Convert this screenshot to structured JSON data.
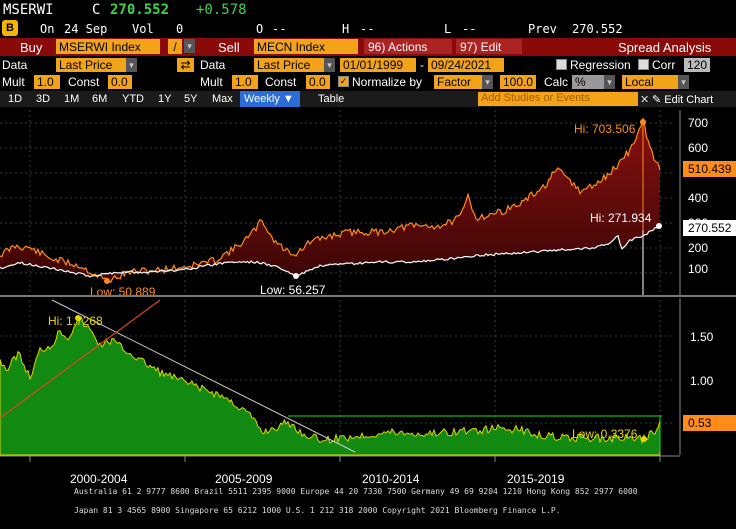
{
  "header": {
    "ticker": "MSERWI",
    "c_label": "C",
    "last": "270.552",
    "change": "+0.578",
    "on_label": "On",
    "date": "24 Sep",
    "vol_label": "Vol",
    "vol": "0",
    "o_label": "O",
    "o_val": "--",
    "h_label": "H",
    "h_val": "--",
    "l_label": "L",
    "l_val": "--",
    "prev_label": "Prev",
    "prev": "270.552"
  },
  "toolbar": {
    "buy": "Buy",
    "sec1": "MSERWI Index",
    "slash": "/",
    "sell": "Sell",
    "sec2": "MECN Index",
    "actions": "96) Actions",
    "edit": "97) Edit",
    "title": "Spread Analysis"
  },
  "row4": {
    "data": "Data",
    "last_price": "Last Price",
    "data2": "Data",
    "last_price2": "Last Price",
    "start": "01/01/1999",
    "dash": "-",
    "end": "09/24/2021",
    "regression": "Regression",
    "corr": "Corr",
    "corr_val": "120"
  },
  "row5": {
    "mult": "Mult",
    "mult_val": "1.0",
    "const": "Const",
    "const_val": "0.0",
    "mult2": "Mult",
    "mult_val2": "1.0",
    "const2": "Const",
    "const_val2": "0.0",
    "normalize": "Normalize by",
    "factor": "Factor",
    "factor_val": "100.0",
    "calc": "Calc",
    "calc_val": "%",
    "local": "Local"
  },
  "periods": {
    "items": [
      "1D",
      "3D",
      "1M",
      "6M",
      "YTD",
      "1Y",
      "5Y",
      "Max"
    ],
    "weekly": "Weekly",
    "table": "Table",
    "studies_placeholder": "Add Studies or Events",
    "edit_chart": "Edit Chart"
  },
  "chart_data": [
    {
      "type": "area",
      "panel": "upper",
      "series": [
        {
          "name": "MECN Index",
          "color": "#ff8c1a"
        },
        {
          "name": "MSERWI Index",
          "color": "#ffffff"
        }
      ],
      "yticks": [
        "700",
        "600",
        "500",
        "400",
        "300",
        "200",
        "100"
      ],
      "ylim": [
        0,
        750
      ],
      "annotations": {
        "hi1": "Hi: 703.506",
        "low1": "Low: 50.889",
        "hi2": "Hi: 271.934",
        "low2": "Low: 56.257",
        "tag1": "510.439",
        "tag2": "270.552"
      }
    },
    {
      "type": "area",
      "panel": "lower",
      "series": [
        {
          "name": "Ratio",
          "color": "#1a8a1a"
        }
      ],
      "yticks": [
        "1.50",
        "1.00",
        "0.53"
      ],
      "ylim": [
        0.3,
        1.85
      ],
      "annotations": {
        "hi": "Hi: 1.7268",
        "low": "Low: 0.3376",
        "tag": "0.53"
      }
    }
  ],
  "xaxis": {
    "labels": [
      "2000-2004",
      "2005-2009",
      "2010-2014",
      "2015-2019"
    ]
  },
  "footer": {
    "line1": "Australia 61 2 9777 8600 Brazil 5511 2395 9000 Europe 44 20 7330 7500 Germany 49 69 9204 1210 Hong Kong 852 2977 6000",
    "line2": "Japan 81 3 4565 8900        Singapore 65 6212 1000        U.S. 1 212 318 2000        Copyright 2021 Bloomberg Finance L.P."
  }
}
